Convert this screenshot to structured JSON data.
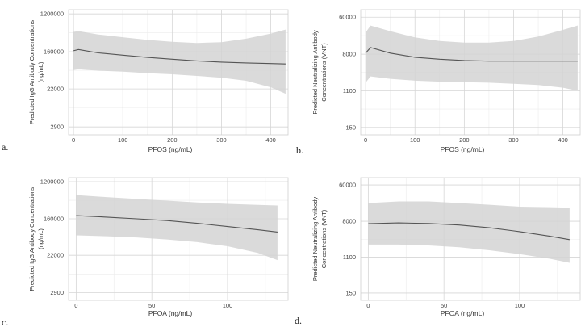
{
  "chart_data": [
    {
      "id": "a",
      "panel_label": "a.",
      "type": "line",
      "xlabel": "PFOS (ng/mL)",
      "ylabel_lines": [
        "Predicted IgG Antibody Concentrations",
        "(ng/mL)"
      ],
      "x_ticks": [
        0,
        100,
        200,
        300,
        400
      ],
      "x_tick_labels": [
        "0",
        "100",
        "200",
        "300",
        "400"
      ],
      "xlim": [
        -10,
        435
      ],
      "y_ticks": [
        1200000,
        160000,
        22000,
        2900
      ],
      "y_tick_labels": [
        "1200000",
        "160000",
        "22000",
        "2900"
      ],
      "ylim_log": [
        1900,
        1500000
      ],
      "x": [
        0,
        10,
        50,
        100,
        150,
        200,
        250,
        300,
        350,
        400,
        430
      ],
      "y": [
        168000,
        180000,
        150000,
        133000,
        118000,
        107000,
        98000,
        92000,
        88000,
        85000,
        83000
      ],
      "ci_lower": [
        60000,
        63000,
        58000,
        55000,
        51000,
        48000,
        44000,
        40000,
        34000,
        24000,
        17000
      ],
      "ci_upper": [
        460000,
        480000,
        400000,
        345000,
        300000,
        270000,
        255000,
        265000,
        320000,
        420000,
        520000
      ]
    },
    {
      "id": "b",
      "panel_label": "b.",
      "type": "line",
      "xlabel": "PFOS (ng/mL)",
      "ylabel_lines": [
        "Predicted Neutralizing Antibody",
        "Concentrations (VNT)"
      ],
      "x_ticks": [
        0,
        100,
        200,
        300,
        400
      ],
      "x_tick_labels": [
        "0",
        "100",
        "200",
        "300",
        "400"
      ],
      "xlim": [
        -10,
        435
      ],
      "y_ticks": [
        60000,
        8000,
        1100,
        150
      ],
      "y_tick_labels": [
        "60000",
        "8000",
        "1100",
        "150"
      ],
      "ylim_log": [
        100,
        90000
      ],
      "x": [
        0,
        10,
        50,
        100,
        150,
        200,
        250,
        300,
        350,
        400,
        430
      ],
      "y": [
        8500,
        11500,
        8500,
        6800,
        6100,
        5700,
        5500,
        5500,
        5500,
        5500,
        5500
      ],
      "ci_lower": [
        1700,
        2400,
        2100,
        1900,
        1800,
        1750,
        1700,
        1600,
        1500,
        1300,
        1100
      ],
      "ci_upper": [
        26000,
        38000,
        28000,
        20000,
        16500,
        15000,
        15000,
        16500,
        21000,
        30000,
        38000
      ]
    },
    {
      "id": "c",
      "panel_label": "c.",
      "type": "line",
      "xlabel": "PFOA (ng/mL)",
      "ylabel_lines": [
        "Predicted IgG Antibody Concentrations",
        "(ng/mL)"
      ],
      "x_ticks": [
        0,
        50,
        100
      ],
      "x_tick_labels": [
        "0",
        "50",
        "100"
      ],
      "xlim": [
        -5,
        140
      ],
      "y_ticks": [
        1200000,
        160000,
        22000,
        2900
      ],
      "y_tick_labels": [
        "1200000",
        "160000",
        "22000",
        "2900"
      ],
      "ylim_log": [
        1900,
        1500000
      ],
      "x": [
        0,
        20,
        40,
        60,
        80,
        100,
        120,
        133
      ],
      "y": [
        190000,
        175000,
        160000,
        145000,
        125000,
        105000,
        88000,
        78000
      ],
      "ci_lower": [
        65000,
        62000,
        58000,
        52000,
        45000,
        36000,
        25000,
        17000
      ],
      "ci_upper": [
        580000,
        520000,
        470000,
        430000,
        390000,
        360000,
        340000,
        330000
      ]
    },
    {
      "id": "d",
      "panel_label": "d.",
      "type": "line",
      "xlabel": "PFOA (ng/mL)",
      "ylabel_lines": [
        "Predicted Neutralizing Antibody",
        "Concentrations (VNT)"
      ],
      "x_ticks": [
        0,
        50,
        100
      ],
      "x_tick_labels": [
        "0",
        "50",
        "100"
      ],
      "xlim": [
        -5,
        140
      ],
      "y_ticks": [
        60000,
        8000,
        1100,
        150
      ],
      "y_tick_labels": [
        "60000",
        "8000",
        "1100",
        "150"
      ],
      "ylim_log": [
        100,
        90000
      ],
      "x": [
        0,
        20,
        40,
        60,
        80,
        100,
        120,
        133
      ],
      "y": [
        7000,
        7300,
        7100,
        6500,
        5600,
        4500,
        3500,
        2900
      ],
      "ci_lower": [
        2200,
        2200,
        2100,
        1900,
        1600,
        1300,
        1000,
        800
      ],
      "ci_upper": [
        22000,
        24000,
        24000,
        22000,
        20000,
        18000,
        17500,
        17000
      ]
    }
  ]
}
